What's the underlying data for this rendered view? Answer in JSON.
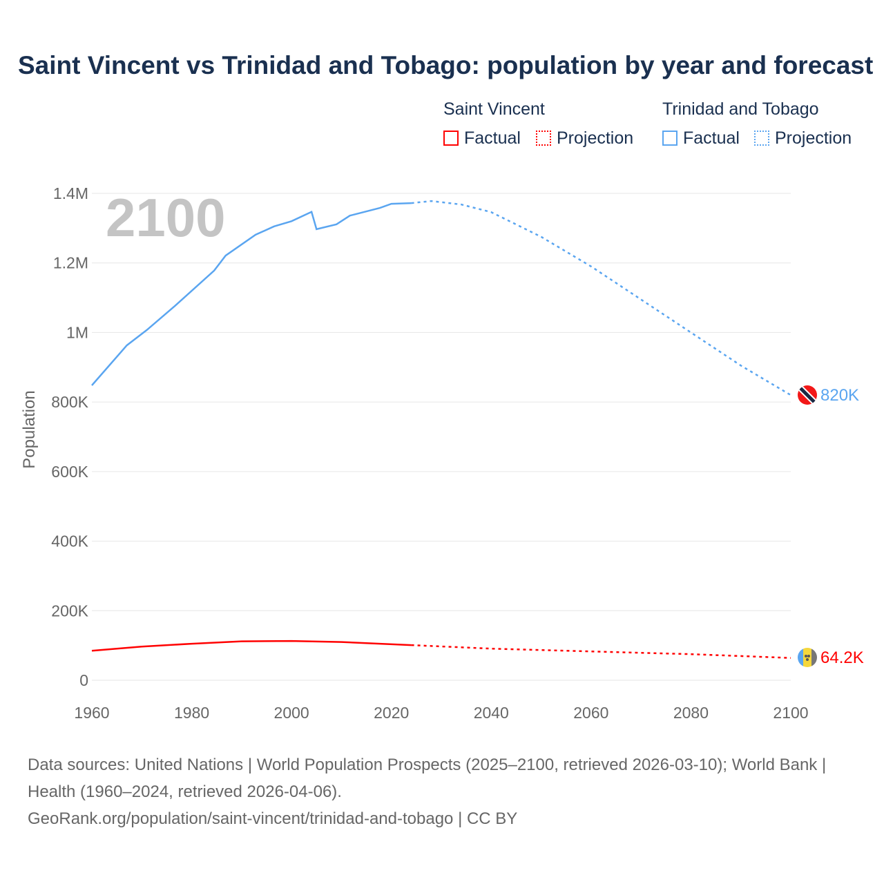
{
  "title": "Saint Vincent vs Trinidad and Tobago: population by year and forecast",
  "legend": {
    "groups": [
      {
        "name": "Saint Vincent",
        "factual": "Factual",
        "projection": "Projection",
        "color": "#ff0000"
      },
      {
        "name": "Trinidad and Tobago",
        "factual": "Factual",
        "projection": "Projection",
        "color": "#5aa5f0"
      }
    ]
  },
  "year_label": "2100",
  "source_lines": [
    "Data sources: United Nations | World Population Prospects (2025–2100, retrieved 2026-03-10); World Bank | Health (1960–2024, retrieved 2026-04-06).",
    "GeoRank.org/population/saint-vincent/trinidad-and-tobago | CC BY"
  ],
  "chart_data": {
    "type": "line",
    "ylabel": "Population",
    "xlim": [
      1960,
      2100
    ],
    "ylim": [
      0,
      1400000
    ],
    "x_ticks": [
      "1960",
      "1980",
      "2000",
      "2020",
      "2040",
      "2060",
      "2080",
      "2100"
    ],
    "y_ticks": [
      {
        "v": 0,
        "label": "0"
      },
      {
        "v": 200000,
        "label": "200K"
      },
      {
        "v": 400000,
        "label": "400K"
      },
      {
        "v": 600000,
        "label": "600K"
      },
      {
        "v": 800000,
        "label": "800K"
      },
      {
        "v": 1000000,
        "label": "1M"
      },
      {
        "v": 1200000,
        "label": "1.2M"
      },
      {
        "v": 1400000,
        "label": "1.4M"
      }
    ],
    "grid": true,
    "series": [
      {
        "name": "Trinidad and Tobago",
        "color": "#5aa5f0",
        "end_label": "820K",
        "factual": [
          [
            1960,
            848000
          ],
          [
            1967,
            963000
          ],
          [
            1971,
            1007000
          ],
          [
            1976.6,
            1076000
          ],
          [
            1984.5,
            1178000
          ],
          [
            1986.8,
            1221000
          ],
          [
            1992.8,
            1281000
          ],
          [
            1996.5,
            1305000
          ],
          [
            2000,
            1320000
          ],
          [
            2004,
            1347000
          ],
          [
            2005,
            1297000
          ],
          [
            2009,
            1311000
          ],
          [
            2011.7,
            1336000
          ],
          [
            2017.7,
            1358000
          ],
          [
            2020,
            1370000
          ],
          [
            2024,
            1372000
          ]
        ],
        "projection": [
          [
            2024,
            1372000
          ],
          [
            2028,
            1378000
          ],
          [
            2034,
            1368000
          ],
          [
            2040,
            1346000
          ],
          [
            2050,
            1275000
          ],
          [
            2060,
            1190000
          ],
          [
            2070,
            1095000
          ],
          [
            2080,
            1000000
          ],
          [
            2090,
            905000
          ],
          [
            2100,
            820000
          ]
        ]
      },
      {
        "name": "Saint Vincent",
        "color": "#ff0000",
        "end_label": "64.2K",
        "factual": [
          [
            1960,
            85000
          ],
          [
            1970,
            97000
          ],
          [
            1980,
            105000
          ],
          [
            1990,
            112000
          ],
          [
            2000,
            113000
          ],
          [
            2010,
            110000
          ],
          [
            2024,
            101000
          ]
        ],
        "projection": [
          [
            2024,
            101000
          ],
          [
            2040,
            91000
          ],
          [
            2060,
            83000
          ],
          [
            2080,
            75000
          ],
          [
            2100,
            64200
          ]
        ]
      }
    ]
  }
}
